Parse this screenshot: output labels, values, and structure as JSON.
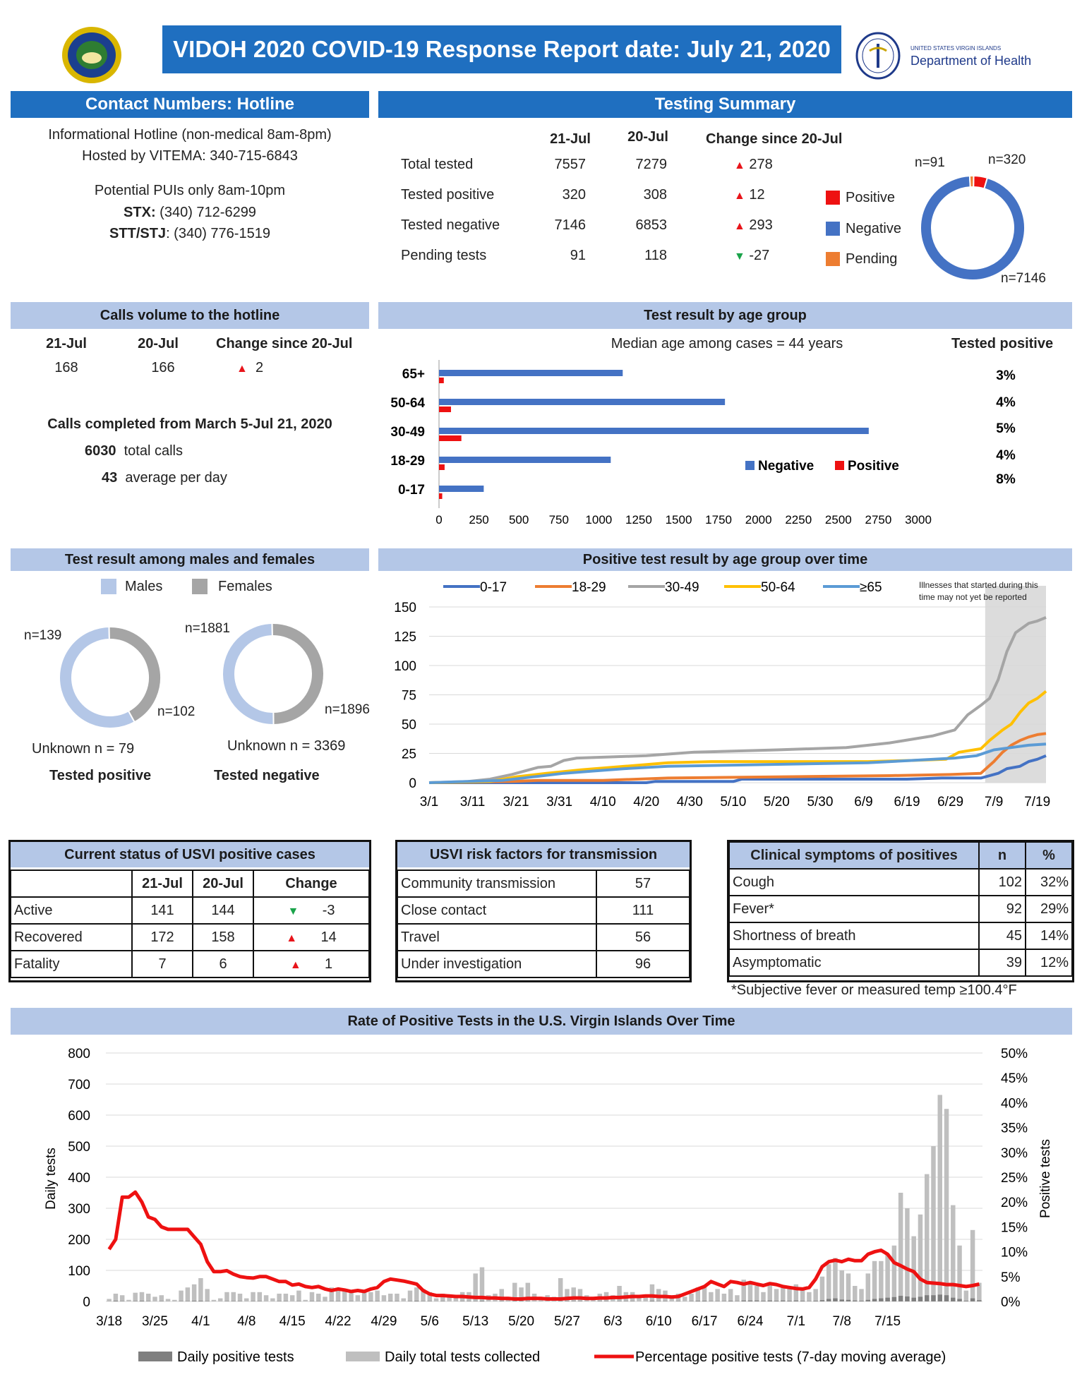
{
  "header": {
    "title": "VIDOH 2020 COVID-19 Response Report date: July 21, 2020",
    "dept_small": "UNITED STATES VIRGIN ISLANDS",
    "dept": "Department of Health"
  },
  "contact": {
    "title": "Contact Numbers: Hotline",
    "line1": "Informational Hotline (non-medical 8am-8pm)",
    "line2": "Hosted by VITEMA: 340-715-6843",
    "line3": "Potential PUIs only 8am-10pm",
    "stx_label": "STX:",
    "stx_value": " (340) 712-6299",
    "stt_label": "STT/STJ",
    "stt_value": ": (340) 776-1519"
  },
  "testing": {
    "title": "Testing Summary",
    "col1": "21-Jul",
    "col2": "20-Jul",
    "col3": "Change since 20-Jul",
    "rows": [
      {
        "label": "Total tested",
        "v1": "7557",
        "v2": "7279",
        "chg": "278",
        "dir": "up"
      },
      {
        "label": "Tested positive",
        "v1": "320",
        "v2": "308",
        "chg": "12",
        "dir": "up"
      },
      {
        "label": "Tested negative",
        "v1": "7146",
        "v2": "6853",
        "chg": "293",
        "dir": "up"
      },
      {
        "label": "Pending tests",
        "v1": "91",
        "v2": "118",
        "chg": "-27",
        "dir": "down"
      }
    ],
    "legend": [
      "Positive",
      "Negative",
      "Pending"
    ],
    "colors": {
      "positive": "#ee1111",
      "negative": "#4472c4",
      "pending": "#ed7d31"
    },
    "donut": {
      "positive": 320,
      "negative": 7146,
      "pending": 91
    },
    "donut_labels": {
      "pending": "n=91",
      "positive": "n=320",
      "negative": "n=7146"
    }
  },
  "calls": {
    "title": "Calls volume to the hotline",
    "col1": "21-Jul",
    "col2": "20-Jul",
    "col3": "Change since 20-Jul",
    "v1": "168",
    "v2": "166",
    "chg": "2",
    "completed": "Calls completed from March 5-Jul 21, 2020",
    "total_num": "6030",
    "total_label": "total calls",
    "avg_num": "43",
    "avg_label": "average per day"
  },
  "age": {
    "title": "Test result by age group",
    "median": "Median age among cases = 44 years",
    "tested_pos": "Tested positive",
    "legend_neg": "Negative",
    "legend_pos": "Positive"
  },
  "sex": {
    "title": "Test result among males and females",
    "legend_m": "Males",
    "legend_f": "Females",
    "pos": {
      "n_m": "n=139",
      "n_f": "n=102",
      "unknown": "Unknown n = 79",
      "label": "Tested positive"
    },
    "neg": {
      "n_m": "n=1881",
      "n_f": "n=1896",
      "unknown": "Unknown n = 3369",
      "label": "Tested negative"
    },
    "colors": {
      "males": "#b4c7e7",
      "females": "#a5a5a5"
    }
  },
  "overtime": {
    "title": "Positive test result by age group over time",
    "note1": "Illnesses that started during this",
    "note2": "time may not yet be reported"
  },
  "status": {
    "title": "Current status of USVI positive cases",
    "col1": "21-Jul",
    "col2": "20-Jul",
    "col3": "Change",
    "rows": [
      {
        "label": "Active",
        "v1": "141",
        "v2": "144",
        "chg": "-3",
        "dir": "down"
      },
      {
        "label": "Recovered",
        "v1": "172",
        "v2": "158",
        "chg": "14",
        "dir": "up"
      },
      {
        "label": "Fatality",
        "v1": "7",
        "v2": "6",
        "chg": "1",
        "dir": "up"
      }
    ]
  },
  "risk": {
    "title": "USVI risk factors for transmission",
    "rows": [
      {
        "label": "Community transmission",
        "v": "57"
      },
      {
        "label": "Close contact",
        "v": "111"
      },
      {
        "label": "Travel",
        "v": "56"
      },
      {
        "label": "Under investigation",
        "v": "96"
      }
    ]
  },
  "symptoms": {
    "title": "Clinical symptoms of positives",
    "col_n": "n",
    "col_p": "%",
    "rows": [
      {
        "label": "Cough",
        "n": "102",
        "p": "32%"
      },
      {
        "label": "Fever*",
        "n": "92",
        "p": "29%"
      },
      {
        "label": "Shortness of breath",
        "n": "45",
        "p": "14%"
      },
      {
        "label": "Asymptomatic",
        "n": "39",
        "p": "12%"
      }
    ],
    "footnote": "*Subjective fever or measured temp ≥100.4°F"
  },
  "rate": {
    "title": "Rate of Positive Tests in the U.S. Virgin Islands Over Time"
  },
  "chart_data": [
    {
      "type": "bar",
      "orientation": "horizontal",
      "title": "Test result by age group",
      "categories": [
        "65+",
        "50-64",
        "30-49",
        "18-29",
        "0-17"
      ],
      "series": [
        {
          "name": "Negative",
          "color": "#4472c4",
          "values": [
            1150,
            1790,
            2690,
            1075,
            280
          ]
        },
        {
          "name": "Positive",
          "color": "#ee1111",
          "values": [
            30,
            75,
            140,
            35,
            20
          ]
        }
      ],
      "positive_pct": [
        "3%",
        "4%",
        "5%",
        "4%",
        "8%"
      ],
      "xlim": [
        0,
        3000
      ],
      "xticks": [
        0,
        250,
        500,
        750,
        1000,
        1250,
        1500,
        1750,
        2000,
        2250,
        2500,
        2750,
        3000
      ],
      "legend": "bottom-right"
    },
    {
      "type": "pie",
      "title": "Tested positive",
      "slices": [
        {
          "name": "Males",
          "value": 139
        },
        {
          "name": "Females",
          "value": 102
        }
      ]
    },
    {
      "type": "pie",
      "title": "Tested negative",
      "slices": [
        {
          "name": "Males",
          "value": 1881
        },
        {
          "name": "Females",
          "value": 1896
        }
      ]
    },
    {
      "type": "line",
      "title": "Positive test result by age group over time",
      "x_start": "3/1",
      "x_end": "7/21",
      "xticks": [
        "3/1",
        "3/11",
        "3/21",
        "3/31",
        "4/10",
        "4/20",
        "4/30",
        "5/10",
        "5/20",
        "5/30",
        "6/9",
        "6/19",
        "6/29",
        "7/9",
        "7/19"
      ],
      "ylim": [
        0,
        150
      ],
      "yticks": [
        0,
        25,
        50,
        75,
        100,
        125,
        150
      ],
      "shaded_from": "7/7",
      "series": [
        {
          "name": "0-17",
          "color": "#4472c4",
          "points": [
            [
              "3/1",
              0
            ],
            [
              "4/20",
              0
            ],
            [
              "4/22",
              1
            ],
            [
              "5/10",
              1
            ],
            [
              "5/12",
              3
            ],
            [
              "6/19",
              3
            ],
            [
              "6/27",
              4
            ],
            [
              "7/6",
              4
            ],
            [
              "7/10",
              8
            ],
            [
              "7/12",
              12
            ],
            [
              "7/15",
              14
            ],
            [
              "7/17",
              18
            ],
            [
              "7/19",
              20
            ],
            [
              "7/21",
              23
            ]
          ]
        },
        {
          "name": "18-29",
          "color": "#ed7d31",
          "points": [
            [
              "3/1",
              0
            ],
            [
              "3/20",
              1
            ],
            [
              "3/26",
              2
            ],
            [
              "4/10",
              2
            ],
            [
              "4/25",
              4
            ],
            [
              "5/20",
              5
            ],
            [
              "6/15",
              6
            ],
            [
              "6/29",
              7
            ],
            [
              "7/6",
              8
            ],
            [
              "7/9",
              18
            ],
            [
              "7/11",
              26
            ],
            [
              "7/13",
              32
            ],
            [
              "7/15",
              36
            ],
            [
              "7/17",
              39
            ],
            [
              "7/19",
              41
            ],
            [
              "7/21",
              42
            ]
          ]
        },
        {
          "name": "30-49",
          "color": "#a5a5a5",
          "points": [
            [
              "3/1",
              0
            ],
            [
              "3/10",
              1
            ],
            [
              "3/15",
              3
            ],
            [
              "3/20",
              7
            ],
            [
              "3/23",
              10
            ],
            [
              "3/26",
              13
            ],
            [
              "3/29",
              14
            ],
            [
              "4/1",
              19
            ],
            [
              "4/4",
              21
            ],
            [
              "4/20",
              23
            ],
            [
              "5/1",
              26
            ],
            [
              "5/20",
              28
            ],
            [
              "6/5",
              30
            ],
            [
              "6/15",
              34
            ],
            [
              "6/25",
              40
            ],
            [
              "6/30",
              45
            ],
            [
              "7/3",
              58
            ],
            [
              "7/6",
              66
            ],
            [
              "7/8",
              72
            ],
            [
              "7/10",
              88
            ],
            [
              "7/12",
              112
            ],
            [
              "7/14",
              128
            ],
            [
              "7/17",
              136
            ],
            [
              "7/19",
              138
            ],
            [
              "7/21",
              141
            ]
          ]
        },
        {
          "name": "50-64",
          "color": "#ffc000",
          "points": [
            [
              "3/1",
              0
            ],
            [
              "3/15",
              1
            ],
            [
              "3/21",
              5
            ],
            [
              "3/28",
              8
            ],
            [
              "4/5",
              11
            ],
            [
              "4/15",
              14
            ],
            [
              "4/25",
              17
            ],
            [
              "5/5",
              18
            ],
            [
              "6/10",
              18
            ],
            [
              "6/20",
              19
            ],
            [
              "6/28",
              20
            ],
            [
              "7/1",
              26
            ],
            [
              "7/6",
              29
            ],
            [
              "7/8",
              36
            ],
            [
              "7/11",
              45
            ],
            [
              "7/13",
              50
            ],
            [
              "7/15",
              60
            ],
            [
              "7/17",
              68
            ],
            [
              "7/19",
              72
            ],
            [
              "7/21",
              78
            ]
          ]
        },
        {
          "name": "≥65",
          "color": "#5b9bd5",
          "points": [
            [
              "3/1",
              0
            ],
            [
              "3/18",
              2
            ],
            [
              "3/25",
              5
            ],
            [
              "4/1",
              8
            ],
            [
              "4/8",
              10
            ],
            [
              "4/15",
              12
            ],
            [
              "4/25",
              14
            ],
            [
              "5/10",
              15
            ],
            [
              "6/10",
              17
            ],
            [
              "6/20",
              19
            ],
            [
              "6/30",
              21
            ],
            [
              "7/5",
              23
            ],
            [
              "7/9",
              28
            ],
            [
              "7/13",
              30
            ],
            [
              "7/17",
              32
            ],
            [
              "7/21",
              33
            ]
          ]
        }
      ]
    },
    {
      "type": "bar+line",
      "title": "Rate of Positive Tests in the U.S. Virgin Islands Over Time",
      "ylabel": "Daily tests",
      "y2label": "Positive tests",
      "ylim": [
        0,
        800
      ],
      "yticks": [
        0,
        100,
        200,
        300,
        400,
        500,
        600,
        700,
        800
      ],
      "y2lim": [
        0,
        50
      ],
      "y2ticks": [
        "0%",
        "5%",
        "10%",
        "15%",
        "20%",
        "25%",
        "30%",
        "35%",
        "40%",
        "45%",
        "50%"
      ],
      "x_start": "3/18",
      "x_end": "7/21",
      "xticks": [
        "3/18",
        "3/25",
        "4/1",
        "4/8",
        "4/15",
        "4/22",
        "4/29",
        "5/6",
        "5/13",
        "5/20",
        "5/27",
        "6/3",
        "6/10",
        "6/17",
        "6/24",
        "7/1",
        "7/8",
        "7/15"
      ],
      "legend": [
        "Daily positive tests",
        "Daily total tests collected",
        "Percentage positive tests (7-day moving average)"
      ],
      "colors": {
        "positive": "#7f7f7f",
        "total": "#bfbfbf",
        "pct": "#ee1111"
      },
      "daily_total": [
        8,
        25,
        20,
        5,
        28,
        30,
        25,
        15,
        20,
        8,
        5,
        35,
        45,
        55,
        75,
        40,
        5,
        10,
        30,
        30,
        25,
        10,
        30,
        30,
        20,
        10,
        25,
        25,
        20,
        35,
        5,
        30,
        25,
        15,
        45,
        40,
        35,
        30,
        20,
        35,
        30,
        35,
        20,
        25,
        25,
        10,
        35,
        45,
        40,
        30,
        10,
        25,
        15,
        15,
        30,
        30,
        90,
        110,
        20,
        25,
        40,
        15,
        60,
        45,
        60,
        25,
        15,
        20,
        15,
        75,
        40,
        45,
        40,
        20,
        15,
        25,
        30,
        20,
        50,
        30,
        30,
        20,
        15,
        55,
        40,
        35,
        20,
        25,
        15,
        25,
        45,
        50,
        30,
        40,
        25,
        40,
        20,
        70,
        55,
        50,
        30,
        60,
        40,
        50,
        40,
        55,
        45,
        30,
        40,
        80,
        120,
        140,
        100,
        90,
        50,
        40,
        90,
        130,
        130,
        150,
        180,
        350,
        300,
        210,
        280,
        410,
        500,
        665,
        620,
        310,
        180,
        35,
        230,
        60
      ],
      "daily_positive": [
        0,
        2,
        1,
        0,
        1,
        2,
        1,
        0,
        1,
        0,
        0,
        1,
        1,
        2,
        2,
        1,
        0,
        0,
        1,
        1,
        1,
        0,
        1,
        1,
        0,
        0,
        1,
        1,
        0,
        1,
        0,
        1,
        1,
        0,
        1,
        1,
        1,
        1,
        0,
        1,
        1,
        1,
        0,
        1,
        1,
        0,
        1,
        2,
        1,
        1,
        0,
        1,
        0,
        0,
        1,
        1,
        1,
        2,
        0,
        0,
        1,
        0,
        1,
        1,
        1,
        0,
        0,
        0,
        0,
        1,
        1,
        1,
        1,
        0,
        0,
        1,
        1,
        0,
        1,
        1,
        1,
        0,
        0,
        2,
        1,
        1,
        0,
        1,
        0,
        1,
        2,
        2,
        1,
        1,
        1,
        2,
        1,
        3,
        3,
        3,
        2,
        3,
        2,
        3,
        2,
        3,
        2,
        1,
        2,
        4,
        8,
        10,
        6,
        5,
        3,
        2,
        5,
        8,
        10,
        12,
        14,
        18,
        16,
        12,
        15,
        20,
        20,
        22,
        20,
        12,
        8,
        2,
        10,
        4
      ],
      "pct_7day_avg": [
        10.5,
        12.5,
        21,
        21,
        22,
        20,
        17,
        16.5,
        15,
        14.5,
        14.5,
        14.5,
        14.5,
        13,
        11.5,
        8,
        6,
        6,
        6.2,
        5.5,
        5,
        4.8,
        4.7,
        5,
        5,
        4.5,
        4,
        4,
        3.3,
        3.5,
        3,
        2.8,
        3,
        2.5,
        2.2,
        2.5,
        2.3,
        2,
        2.2,
        2,
        2.5,
        2.8,
        4,
        4.5,
        4.3,
        4.1,
        3.8,
        3.5,
        2.2,
        1.5,
        1.2,
        1.2,
        1.1,
        1,
        1,
        0.9,
        0.8,
        0.8,
        0.7,
        0.7,
        0.6,
        0.6,
        0.5,
        0.5,
        0.6,
        0.6,
        0.6,
        0.5,
        0.5,
        0.5,
        0.6,
        0.7,
        0.7,
        0.6,
        0.6,
        0.7,
        0.7,
        0.8,
        0.8,
        0.9,
        1,
        1,
        1.1,
        1.1,
        1,
        1,
        0.9,
        1,
        1.5,
        2,
        2.5,
        3,
        4,
        3.5,
        3,
        4,
        3.8,
        3.5,
        3.8,
        3.5,
        3.2,
        3.6,
        3.4,
        3,
        2.8,
        2.6,
        2.5,
        2.8,
        4.5,
        7,
        8,
        8.3,
        8,
        8.5,
        8.2,
        8.2,
        9.5,
        10,
        10.3,
        9.5,
        7.8,
        7.2,
        6.5,
        6,
        4.5,
        3.8,
        3.7,
        3.6,
        3.4,
        3.4,
        3.2,
        3,
        3.2,
        3.5
      ]
    }
  ]
}
